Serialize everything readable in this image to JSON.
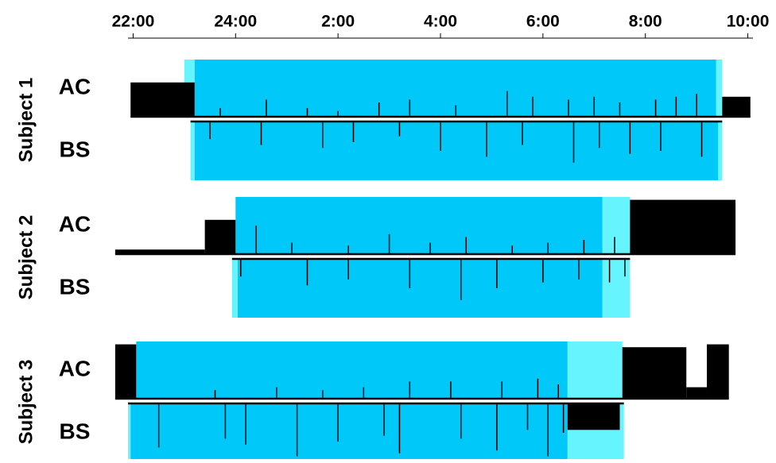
{
  "chart_data": {
    "type": "actigram",
    "xlim": [
      21.9,
      34.1
    ],
    "xticks": [
      {
        "value": 22,
        "label": "22:00"
      },
      {
        "value": 24,
        "label": "24:00"
      },
      {
        "value": 26,
        "label": "2:00"
      },
      {
        "value": 28,
        "label": "4:00"
      },
      {
        "value": 30,
        "label": "6:00"
      },
      {
        "value": 32,
        "label": "8:00"
      },
      {
        "value": 34,
        "label": "10:00"
      }
    ],
    "sleep_color": "#00c8f8",
    "transition_color": "#66f5ff",
    "subjects": [
      {
        "label": "Subject 1",
        "rows": [
          {
            "label": "AC",
            "span": [
              21.95,
              34.05
            ],
            "sleep": [
              23.2,
              33.38
            ],
            "transition": [
              [
                23.0,
                23.2
              ],
              [
                33.38,
                33.5
              ]
            ],
            "dense": [
              [
                21.95,
                23.2,
                0.6
              ],
              [
                33.5,
                34.05,
                0.35
              ]
            ],
            "spikes": [
              [
                23.7,
                0.15
              ],
              [
                24.6,
                0.3
              ],
              [
                25.4,
                0.15
              ],
              [
                26.0,
                0.1
              ],
              [
                26.8,
                0.25
              ],
              [
                27.4,
                0.3
              ],
              [
                28.3,
                0.2
              ],
              [
                29.3,
                0.45
              ],
              [
                29.8,
                0.35
              ],
              [
                30.5,
                0.3
              ],
              [
                31.0,
                0.35
              ],
              [
                31.5,
                0.25
              ],
              [
                32.2,
                0.3
              ],
              [
                32.6,
                0.35
              ],
              [
                33.0,
                0.4
              ]
            ]
          },
          {
            "label": "BS",
            "span": [
              23.12,
              33.5
            ],
            "sleep": [
              23.2,
              33.42
            ],
            "transition": [
              [
                23.12,
                23.2
              ],
              [
                33.42,
                33.5
              ]
            ],
            "dense": [],
            "spikes": [
              [
                23.5,
                0.3
              ],
              [
                24.5,
                0.4
              ],
              [
                25.7,
                0.45
              ],
              [
                26.3,
                0.35
              ],
              [
                27.2,
                0.25
              ],
              [
                28.0,
                0.5
              ],
              [
                28.9,
                0.6
              ],
              [
                29.6,
                0.4
              ],
              [
                30.6,
                0.7
              ],
              [
                31.1,
                0.45
              ],
              [
                31.7,
                0.55
              ],
              [
                32.3,
                0.5
              ],
              [
                33.1,
                0.6
              ]
            ]
          }
        ]
      },
      {
        "label": "Subject 2",
        "rows": [
          {
            "label": "AC",
            "span": [
              21.65,
              33.76
            ],
            "sleep": [
              24.0,
              31.16
            ],
            "transition": [
              [
                31.16,
                31.7
              ]
            ],
            "dense": [
              [
                21.65,
                23.4,
                0.08
              ],
              [
                23.4,
                24.0,
                0.6
              ],
              [
                31.7,
                33.76,
                0.95
              ]
            ],
            "spikes": [
              [
                24.4,
                0.5
              ],
              [
                25.1,
                0.2
              ],
              [
                26.2,
                0.15
              ],
              [
                27.0,
                0.35
              ],
              [
                27.8,
                0.2
              ],
              [
                28.5,
                0.3
              ],
              [
                29.4,
                0.15
              ],
              [
                30.1,
                0.2
              ],
              [
                30.8,
                0.25
              ],
              [
                31.4,
                0.3
              ]
            ]
          },
          {
            "label": "BS",
            "span": [
              23.93,
              31.7
            ],
            "sleep": [
              24.04,
              31.16
            ],
            "transition": [
              [
                23.93,
                24.04
              ],
              [
                31.16,
                31.7
              ]
            ],
            "dense": [],
            "spikes": [
              [
                24.1,
                0.3
              ],
              [
                25.4,
                0.45
              ],
              [
                26.2,
                0.35
              ],
              [
                27.4,
                0.5
              ],
              [
                28.4,
                0.7
              ],
              [
                29.1,
                0.5
              ],
              [
                30.0,
                0.4
              ],
              [
                30.7,
                0.35
              ],
              [
                31.3,
                0.4
              ],
              [
                31.6,
                0.3
              ]
            ]
          }
        ]
      },
      {
        "label": "Subject 3",
        "rows": [
          {
            "label": "AC",
            "span": [
              21.65,
              33.63
            ],
            "sleep": [
              22.06,
              30.48
            ],
            "transition": [
              [
                30.48,
                31.55
              ]
            ],
            "dense": [
              [
                21.65,
                22.06,
                0.95
              ],
              [
                31.55,
                32.8,
                0.9
              ],
              [
                32.8,
                33.2,
                0.2
              ],
              [
                33.2,
                33.63,
                0.95
              ]
            ],
            "spikes": [
              [
                23.6,
                0.15
              ],
              [
                24.8,
                0.2
              ],
              [
                25.7,
                0.15
              ],
              [
                26.5,
                0.2
              ],
              [
                27.4,
                0.3
              ],
              [
                28.2,
                0.3
              ],
              [
                29.2,
                0.3
              ],
              [
                29.9,
                0.35
              ],
              [
                30.3,
                0.25
              ]
            ]
          },
          {
            "label": "BS",
            "span": [
              21.9,
              31.58
            ],
            "sleep": [
              21.95,
              30.48
            ],
            "transition": [
              [
                21.9,
                21.95
              ],
              [
                30.48,
                31.58
              ]
            ],
            "dense": [
              [
                30.48,
                31.5,
                0.45
              ]
            ],
            "spikes": [
              [
                22.5,
                0.75
              ],
              [
                23.8,
                0.6
              ],
              [
                24.2,
                0.7
              ],
              [
                25.2,
                0.9
              ],
              [
                26.0,
                0.65
              ],
              [
                26.9,
                0.55
              ],
              [
                27.2,
                0.85
              ],
              [
                28.4,
                0.6
              ],
              [
                29.1,
                0.8
              ],
              [
                29.7,
                0.45
              ],
              [
                30.1,
                0.9
              ],
              [
                30.4,
                0.5
              ]
            ]
          }
        ]
      }
    ]
  }
}
